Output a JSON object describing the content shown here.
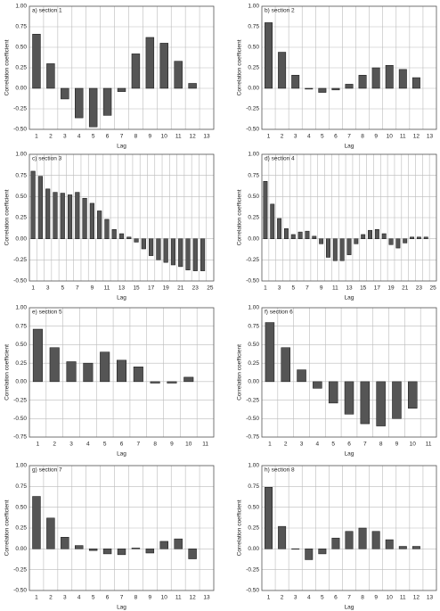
{
  "chart_data": [
    {
      "type": "bar",
      "title": "a) section 1",
      "y_label": "Correlation coefficient",
      "x_label": "Lag",
      "categories": [
        "1",
        "2",
        "3",
        "4",
        "5",
        "6",
        "7",
        "8",
        "9",
        "10",
        "11",
        "12",
        "13"
      ],
      "values": [
        0.66,
        0.3,
        -0.13,
        -0.36,
        -0.47,
        -0.33,
        -0.04,
        0.42,
        0.62,
        0.55,
        0.33,
        0.06,
        null
      ],
      "ylim": [
        -0.5,
        1
      ],
      "yticks": [
        {
          "value": -0.5,
          "label": "-0.50"
        },
        -0.25,
        {
          "value": 0,
          "label": "0.00"
        },
        0.25,
        {
          "value": 0.5,
          "label": "0.50"
        },
        0.75,
        {
          "value": 1,
          "label": "1.00"
        }
      ],
      "color": "#555555",
      "grid": true
    },
    {
      "type": "bar",
      "title": "b) section 2",
      "y_label": "Correlation coefficient",
      "x_label": "Lag",
      "categories": [
        "1",
        "2",
        "3",
        "4",
        "5",
        "6",
        "7",
        "8",
        "9",
        "10",
        "11",
        "12",
        "13"
      ],
      "values": [
        0.8,
        0.44,
        0.16,
        -0.01,
        -0.05,
        -0.02,
        0.05,
        0.16,
        0.25,
        0.28,
        0.23,
        0.13,
        null
      ],
      "ylim": [
        -0.5,
        1
      ],
      "yticks": [
        {
          "value": -0.5,
          "label": "-0.50"
        },
        -0.25,
        {
          "value": 0,
          "label": "0.00"
        },
        0.25,
        {
          "value": 0.5,
          "label": "0.50"
        },
        0.75,
        {
          "value": 1,
          "label": "1.00"
        }
      ],
      "color": "#555555",
      "grid": true
    },
    {
      "type": "bar",
      "title": "c) section 3",
      "y_label": "Correlation coefficient",
      "x_label": "Lag",
      "categories": [
        "1",
        null,
        "3",
        null,
        "5",
        null,
        "7",
        null,
        "9",
        null,
        "11",
        null,
        "13",
        null,
        "15",
        null,
        "17",
        null,
        "19",
        null,
        "21",
        null,
        "23",
        null,
        "25"
      ],
      "values": [
        0.8,
        0.74,
        0.59,
        0.55,
        0.54,
        0.52,
        0.55,
        0.48,
        0.42,
        0.33,
        0.23,
        0.11,
        0.06,
        0.02,
        -0.04,
        -0.12,
        -0.2,
        -0.25,
        -0.28,
        -0.31,
        -0.33,
        -0.37,
        -0.38,
        -0.38,
        null
      ],
      "ylim": [
        -0.5,
        1
      ],
      "yticks": [
        {
          "value": -0.5,
          "label": "-0.50"
        },
        -0.25,
        {
          "value": 0,
          "label": "0.00"
        },
        0.25,
        {
          "value": 0.5,
          "label": "0.50"
        },
        0.75,
        {
          "value": 1,
          "label": "1.00"
        }
      ],
      "color": "#555555",
      "grid": true
    },
    {
      "type": "bar",
      "title": "d) section 4",
      "y_label": "Correlation coefficient",
      "x_label": "Lag",
      "categories": [
        "1",
        null,
        "3",
        null,
        "5",
        null,
        "7",
        null,
        "9",
        null,
        "11",
        null,
        "13",
        null,
        "15",
        null,
        "17",
        null,
        "19",
        null,
        "21",
        null,
        "23",
        null,
        "25"
      ],
      "values": [
        0.68,
        0.41,
        0.24,
        0.12,
        0.05,
        0.08,
        0.09,
        0.03,
        -0.06,
        -0.22,
        -0.26,
        -0.26,
        -0.19,
        -0.06,
        0.05,
        0.1,
        0.11,
        0.06,
        -0.07,
        -0.11,
        -0.05,
        0.02,
        0.02,
        0.02,
        null
      ],
      "ylim": [
        -0.5,
        1
      ],
      "yticks": [
        {
          "value": -0.5,
          "label": "-0.50"
        },
        -0.25,
        {
          "value": 0,
          "label": "0.00"
        },
        0.25,
        {
          "value": 0.5,
          "label": "0.50"
        },
        0.75,
        {
          "value": 1,
          "label": "1.00"
        }
      ],
      "color": "#555555",
      "grid": true
    },
    {
      "type": "bar",
      "title": "e) section 5",
      "y_label": "Correlation coefficient",
      "x_label": "Lag",
      "categories": [
        "1",
        "2",
        "3",
        "4",
        "5",
        "6",
        "7",
        "8",
        "9",
        "10",
        "11"
      ],
      "values": [
        0.71,
        0.46,
        0.27,
        0.25,
        0.4,
        0.29,
        0.2,
        -0.02,
        -0.02,
        0.06,
        null
      ],
      "ylim": [
        -0.75,
        1
      ],
      "yticks": [
        -0.75,
        {
          "value": -0.5,
          "label": "-0.50"
        },
        -0.25,
        {
          "value": 0,
          "label": "0.00"
        },
        0.25,
        {
          "value": 0.5,
          "label": "0.50"
        },
        0.75,
        {
          "value": 1,
          "label": "1.00"
        }
      ],
      "color": "#555555",
      "grid": true
    },
    {
      "type": "bar",
      "title": "f) section 6",
      "y_label": "Correlation coefficient",
      "x_label": "Lag",
      "categories": [
        "1",
        "2",
        "3",
        "4",
        "5",
        "6",
        "7",
        "8",
        "9",
        "10",
        "11"
      ],
      "values": [
        0.8,
        0.46,
        0.16,
        -0.09,
        -0.29,
        -0.44,
        -0.57,
        -0.6,
        -0.5,
        -0.36,
        null
      ],
      "ylim": [
        -0.75,
        1
      ],
      "yticks": [
        -0.75,
        {
          "value": -0.5,
          "label": "-0.50"
        },
        -0.25,
        {
          "value": 0,
          "label": "0.00"
        },
        0.25,
        {
          "value": 0.5,
          "label": "0.50"
        },
        0.75,
        {
          "value": 1,
          "label": "1.00"
        }
      ],
      "color": "#555555",
      "grid": true
    },
    {
      "type": "bar",
      "title": "g) section 7",
      "y_label": "Correlation coefficient",
      "x_label": "Lag",
      "categories": [
        "1",
        "2",
        "3",
        "4",
        "5",
        "6",
        "7",
        "8",
        "9",
        "10",
        "11",
        "12",
        "13"
      ],
      "values": [
        0.63,
        0.37,
        0.14,
        0.04,
        -0.02,
        -0.06,
        -0.07,
        0.01,
        -0.05,
        0.09,
        0.12,
        -0.12,
        null
      ],
      "ylim": [
        -0.5,
        1
      ],
      "yticks": [
        {
          "value": -0.5,
          "label": "-0.50"
        },
        -0.25,
        {
          "value": 0,
          "label": "0.00"
        },
        0.25,
        {
          "value": 0.5,
          "label": "0.50"
        },
        0.75,
        {
          "value": 1,
          "label": "1.00"
        }
      ],
      "color": "#555555",
      "grid": true
    },
    {
      "type": "bar",
      "title": "h) section 8",
      "y_label": "Correlation coefficient",
      "x_label": "Lag",
      "categories": [
        "1",
        "2",
        "3",
        "4",
        "5",
        "6",
        "7",
        "8",
        "9",
        "10",
        "11",
        "12",
        "13"
      ],
      "values": [
        0.74,
        0.27,
        0.0,
        -0.13,
        -0.06,
        0.13,
        0.21,
        0.25,
        0.21,
        0.11,
        0.03,
        0.03,
        null
      ],
      "ylim": [
        -0.5,
        1
      ],
      "yticks": [
        {
          "value": -0.5,
          "label": "-0.50"
        },
        -0.25,
        {
          "value": 0,
          "label": "0.00"
        },
        0.25,
        {
          "value": 0.5,
          "label": "0.50"
        },
        0.75,
        {
          "value": 1,
          "label": "1.00"
        }
      ],
      "color": "#555555",
      "grid": true
    }
  ]
}
